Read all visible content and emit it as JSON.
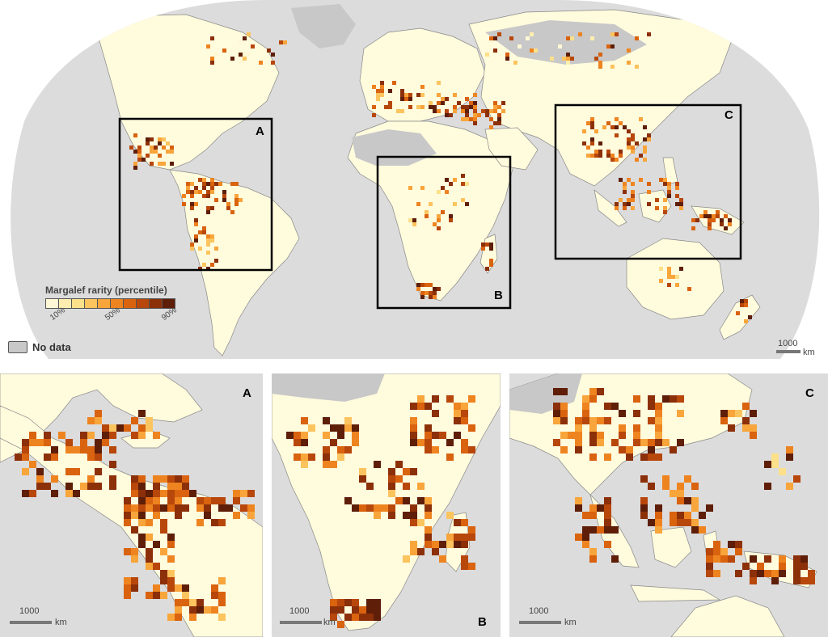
{
  "legend": {
    "title": "Margalef rarity (percentile)",
    "ticks": [
      "10%",
      "50%",
      "90%"
    ],
    "colors": [
      "#fff8d6",
      "#ffeeb0",
      "#fde08a",
      "#fcc45e",
      "#f8a53b",
      "#ee8420",
      "#d9630f",
      "#b8470b",
      "#8c300a",
      "#5e1e08"
    ],
    "nodata_label": "No data",
    "nodata_color": "#c8c8c8"
  },
  "colors": {
    "ocean": "#dcdcdc",
    "land": "#fffbdd",
    "border": "#888888"
  },
  "main_map": {
    "boxes": [
      {
        "label": "A"
      },
      {
        "label": "B"
      },
      {
        "label": "C"
      }
    ],
    "scale": {
      "value": "1000",
      "unit": "km"
    }
  },
  "insets": [
    {
      "label": "A",
      "scale": {
        "value": "1000",
        "unit": "km"
      }
    },
    {
      "label": "B",
      "scale": {
        "value": "1000",
        "unit": "km"
      }
    },
    {
      "label": "C",
      "scale": {
        "value": "1000",
        "unit": "km"
      }
    }
  ]
}
